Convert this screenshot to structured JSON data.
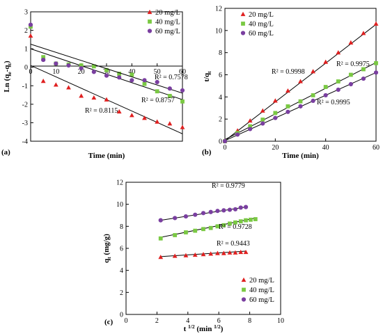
{
  "chart_data": [
    {
      "type": "scatter",
      "panel_label": "(a)",
      "xlabel": "Time (min)",
      "ylabel_main": "Ln (q",
      "ylabel_sub1": "e",
      "ylabel_mid": "-q",
      "ylabel_sub2": "t",
      "ylabel_end": ")",
      "xlim": [
        0,
        60
      ],
      "ylim": [
        -4,
        3
      ],
      "xticks": [
        "0",
        "10",
        "20",
        "30",
        "40",
        "50",
        "60"
      ],
      "yticks": [
        "3",
        "2",
        "1",
        "0",
        "-1",
        "-2",
        "-3",
        "-4"
      ],
      "x": [
        0,
        5,
        10,
        15,
        20,
        25,
        30,
        35,
        40,
        45,
        50,
        55,
        60
      ],
      "series": [
        {
          "name": "20 mg/L",
          "color": "#e02020",
          "marker": "triangle",
          "values": [
            1.7,
            -0.75,
            -0.95,
            -1.1,
            -1.55,
            -1.65,
            -1.75,
            -2.4,
            -2.6,
            -2.75,
            -2.95,
            -3.05,
            -3.25
          ],
          "fit": [
            0.1,
            -3.6
          ],
          "r2": "R² = 0.8115"
        },
        {
          "name": "40 mg/L",
          "color": "#7ac943",
          "marker": "square",
          "values": [
            2.2,
            0.55,
            0.2,
            0.15,
            0.1,
            0.05,
            -0.15,
            -0.35,
            -0.4,
            -0.9,
            -1.3,
            -1.55,
            -1.85
          ],
          "fit": [
            1.0,
            -1.75
          ],
          "r2": "R² = 0.8757"
        },
        {
          "name": "60 mg/L",
          "color": "#7a3fa0",
          "marker": "circle",
          "values": [
            2.3,
            0.4,
            0.2,
            0.1,
            -0.05,
            -0.25,
            -0.45,
            -0.55,
            -0.7,
            -0.7,
            -0.8,
            -1.15,
            -1.25
          ],
          "fit": [
            1.25,
            -1.4
          ],
          "r2": "R² = 0.7578"
        }
      ]
    },
    {
      "type": "scatter",
      "panel_label": "(b)",
      "xlabel": "Time (min)",
      "ylabel_main": "t/q",
      "ylabel_sub1": "t",
      "xlim": [
        0,
        60
      ],
      "ylim": [
        0,
        12
      ],
      "xticks": [
        "0",
        "20",
        "40",
        "60"
      ],
      "yticks": [
        "12",
        "10",
        "8",
        "6",
        "4",
        "2",
        "0"
      ],
      "x": [
        0,
        5,
        10,
        15,
        20,
        25,
        30,
        35,
        40,
        45,
        50,
        55,
        60
      ],
      "series": [
        {
          "name": "20 mg/L",
          "color": "#e02020",
          "marker": "triangle",
          "values": [
            0,
            0.95,
            1.85,
            2.75,
            3.65,
            4.55,
            5.4,
            6.3,
            7.15,
            8.0,
            8.9,
            9.75,
            10.6
          ],
          "fit": [
            0.05,
            10.55
          ],
          "r2": "R² = 0.9998"
        },
        {
          "name": "40 mg/L",
          "color": "#7ac943",
          "marker": "square",
          "values": [
            0,
            0.75,
            1.35,
            1.95,
            2.55,
            3.15,
            3.6,
            4.15,
            4.9,
            5.4,
            6.0,
            6.5,
            7.05
          ],
          "fit": [
            0.15,
            7.1
          ],
          "r2": "R² = 0.9975"
        },
        {
          "name": "60 mg/L",
          "color": "#7a3fa0",
          "marker": "circle",
          "values": [
            0,
            0.6,
            1.1,
            1.6,
            2.1,
            2.65,
            3.15,
            3.65,
            4.15,
            4.65,
            5.15,
            5.65,
            6.2
          ],
          "fit": [
            0.05,
            6.2
          ],
          "r2": "R² = 0.9995"
        }
      ]
    },
    {
      "type": "scatter",
      "panel_label": "(c)",
      "xlabel_main": "t ",
      "xlabel_sup1": "1/2",
      "xlabel_mid": " (min ",
      "xlabel_sup2": "1/2",
      "xlabel_end": ")",
      "ylabel_main": "q",
      "ylabel_sub1": "t",
      "ylabel_end": " (mg/g)",
      "xlim": [
        0,
        10
      ],
      "ylim": [
        0,
        12
      ],
      "xticks": [
        "0",
        "2",
        "4",
        "6",
        "8",
        "10"
      ],
      "yticks": [
        "12",
        "10",
        "8",
        "6",
        "4",
        "2",
        "0"
      ],
      "series": [
        {
          "name": "20 mg/L",
          "color": "#e02020",
          "marker": "triangle",
          "x": [
            2.24,
            3.16,
            3.87,
            4.47,
            5.0,
            5.48,
            5.92,
            6.32,
            6.71,
            7.07,
            7.42,
            7.75
          ],
          "values": [
            5.2,
            5.3,
            5.35,
            5.4,
            5.45,
            5.5,
            5.55,
            5.55,
            5.6,
            5.6,
            5.65,
            5.65
          ],
          "fit_x": [
            2.24,
            7.75
          ],
          "fit": [
            5.25,
            5.75
          ],
          "r2": "R² = 0.9443"
        },
        {
          "name": "40 mg/L",
          "color": "#7ac943",
          "marker": "square",
          "x": [
            2.24,
            3.16,
            3.87,
            4.47,
            5.0,
            5.48,
            5.92,
            6.32,
            6.71,
            7.07,
            7.42,
            7.75,
            8.06,
            8.37
          ],
          "values": [
            6.9,
            7.2,
            7.45,
            7.6,
            7.75,
            7.85,
            8.0,
            8.1,
            8.25,
            8.35,
            8.45,
            8.55,
            8.6,
            8.65
          ],
          "fit_x": [
            2.24,
            8.37
          ],
          "fit": [
            7.0,
            8.75
          ],
          "r2": "R² = 0.9728"
        },
        {
          "name": "60 mg/L",
          "color": "#7a3fa0",
          "marker": "circle",
          "x": [
            2.24,
            3.16,
            3.87,
            4.47,
            5.0,
            5.48,
            5.92,
            6.32,
            6.71,
            7.07,
            7.42,
            7.75
          ],
          "values": [
            8.55,
            8.75,
            8.9,
            9.05,
            9.2,
            9.3,
            9.4,
            9.45,
            9.5,
            9.55,
            9.7,
            9.75
          ],
          "fit_x": [
            2.24,
            7.75
          ],
          "fit": [
            8.55,
            9.75
          ],
          "r2": "R² = 0.9779"
        }
      ]
    }
  ]
}
